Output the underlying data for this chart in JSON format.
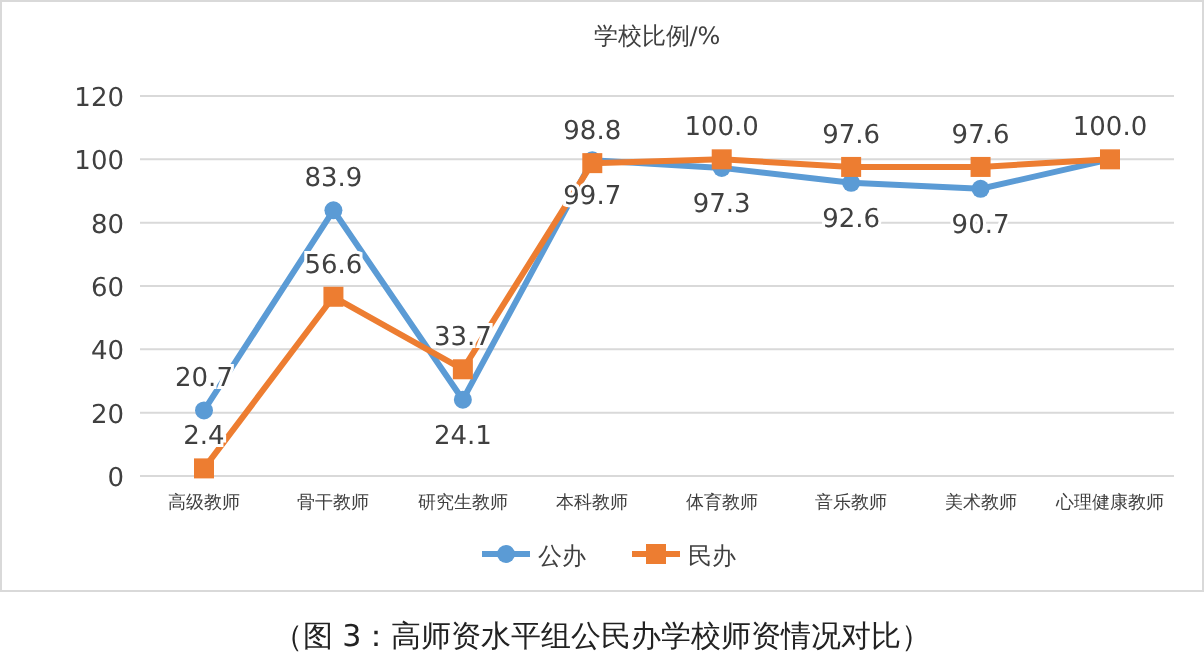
{
  "chart_data": {
    "type": "line",
    "title": "学校比例/%",
    "categories": [
      "高级教师",
      "骨干教师",
      "研究生教师",
      "本科教师",
      "体育教师",
      "音乐教师",
      "美术教师",
      "心理健康教师"
    ],
    "series": [
      {
        "name": "公办",
        "color": "#5b9bd5",
        "marker": "circle",
        "values": [
          20.7,
          83.9,
          24.1,
          99.7,
          97.3,
          92.6,
          90.7,
          100.0
        ],
        "value_labels": [
          "20.7",
          "83.9",
          "24.1",
          "99.7",
          "97.3",
          "92.6",
          "90.7",
          null
        ]
      },
      {
        "name": "民办",
        "color": "#ed7d31",
        "marker": "square",
        "values": [
          2.4,
          56.6,
          33.7,
          98.8,
          100.0,
          97.6,
          97.6,
          100.0
        ],
        "value_labels": [
          "2.4",
          "56.6",
          "33.7",
          "98.8",
          "100.0",
          "97.6",
          "97.6",
          "100.0"
        ]
      }
    ],
    "ylim": [
      0,
      120
    ],
    "yticks": [
      0,
      20,
      40,
      60,
      80,
      100,
      120
    ],
    "grid": "y",
    "legend": "bottom",
    "annotations": [
      "（图 3：高师资水平组公民办学校师资情况对比）"
    ]
  }
}
